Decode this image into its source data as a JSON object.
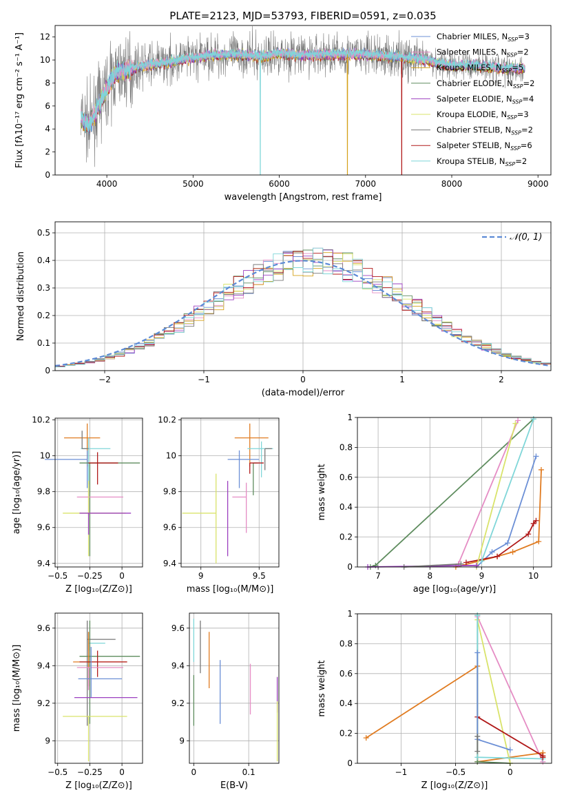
{
  "colors": {
    "Chabrier MILES": "#6b8fd6",
    "Salpeter MILES": "#e58cc4",
    "Kroupa MILES": "#d4a017",
    "Chabrier ELODIE": "#5e8c5e",
    "Salpeter ELODIE": "#9b3fbf",
    "Kroupa ELODIE": "#d9e36a",
    "Chabrier STELIB": "#777777",
    "Salpeter STELIB": "#b01818",
    "Kroupa STELIB": "#7fd6d8",
    "orange": "#e07b20",
    "normal": "#5b8ad6"
  },
  "chart_data": [
    {
      "type": "line",
      "title": "PLATE=2123, MJD=53793, FIBERID=0591, z=0.035",
      "xlabel": "wavelength [Angstrom, rest frame]",
      "ylabel": "Flux [fλ10⁻¹⁷ erg cm⁻² s⁻¹ A⁻¹]",
      "xlim": [
        3400,
        9150
      ],
      "ylim": [
        0,
        13
      ],
      "xticks": [
        4000,
        5000,
        6000,
        7000,
        8000,
        9000
      ],
      "yticks": [
        0,
        2,
        4,
        6,
        8,
        10,
        12
      ],
      "grid": false,
      "legend_position": "top-right",
      "legend": [
        {
          "series": "Chabrier MILES",
          "label": "Chabrier MILES, N",
          "sub": "SSP",
          "tail": "=3"
        },
        {
          "series": "Salpeter MILES",
          "label": "Salpeter MILES, N",
          "sub": "SSP",
          "tail": "=2"
        },
        {
          "series": "Kroupa MILES",
          "label": "Kroupa MILES, N",
          "sub": "SSP",
          "tail": "=5"
        },
        {
          "series": "Chabrier ELODIE",
          "label": "Chabrier ELODIE, N",
          "sub": "SSP",
          "tail": "=2"
        },
        {
          "series": "Salpeter ELODIE",
          "label": "Salpeter ELODIE, N",
          "sub": "SSP",
          "tail": "=4"
        },
        {
          "series": "Kroupa ELODIE",
          "label": "Kroupa ELODIE, N",
          "sub": "SSP",
          "tail": "=3"
        },
        {
          "series": "Chabrier STELIB",
          "label": "Chabrier STELIB, N",
          "sub": "SSP",
          "tail": "=2"
        },
        {
          "series": "Salpeter STELIB",
          "label": "Salpeter STELIB, N",
          "sub": "SSP",
          "tail": "=6"
        },
        {
          "series": "Kroupa STELIB",
          "label": "Kroupa STELIB, N",
          "sub": "SSP",
          "tail": "=2"
        }
      ],
      "model_continuum": {
        "x": [
          3700,
          3800,
          3900,
          4000,
          4100,
          4300,
          4500,
          4700,
          5000,
          5200,
          5500,
          5800,
          6000,
          6300,
          6600,
          7000,
          7300,
          7700,
          8000,
          8300,
          8600,
          8850
        ],
        "y": [
          5.0,
          4.2,
          6.0,
          7.5,
          8.8,
          9.3,
          9.6,
          9.8,
          10.2,
          10.4,
          10.5,
          10.3,
          10.6,
          10.4,
          10.5,
          10.5,
          10.3,
          10.0,
          9.5,
          9.5,
          9.3,
          9.3
        ]
      },
      "data_noise_amplitude": 1.3,
      "absorption_drops": [
        {
          "series": "Kroupa STELIB",
          "x": 5780,
          "to": 0
        },
        {
          "series": "Kroupa MILES",
          "x": 6790,
          "to": 0
        },
        {
          "series": "Salpeter STELIB",
          "x": 7420,
          "to": 0
        }
      ]
    },
    {
      "type": "histogram",
      "xlabel": "(data-model)/error",
      "ylabel": "Normed distribution",
      "xlim": [
        -2.5,
        2.5
      ],
      "ylim": [
        0,
        0.54
      ],
      "xticks": [
        -2,
        -1,
        0,
        1,
        2
      ],
      "yticks": [
        0.0,
        0.1,
        0.2,
        0.3,
        0.4,
        0.5
      ],
      "grid": true,
      "legend_position": "top-right",
      "legend_label": "𝒩(0, 1)",
      "normal_curve": {
        "mean": 0,
        "sd": 1
      },
      "bin_width": 0.1,
      "series": [
        "Chabrier MILES",
        "Salpeter MILES",
        "Kroupa MILES",
        "Chabrier ELODIE",
        "Salpeter ELODIE",
        "Kroupa ELODIE",
        "Chabrier STELIB",
        "Salpeter STELIB",
        "Kroupa STELIB"
      ]
    },
    {
      "type": "errorbar",
      "xlabel": "Z [log₁₀(Z/Z⊙)]",
      "ylabel": "age  [log₁₀(age/yr)]",
      "xlim": [
        -0.52,
        0.16
      ],
      "ylim": [
        9.38,
        10.21
      ],
      "xticks": [
        -0.5,
        -0.25,
        0.0
      ],
      "yticks": [
        9.4,
        9.6,
        9.8,
        10.0,
        10.2
      ],
      "points": [
        {
          "series": "orange",
          "x": -0.27,
          "xerr": [
            0.18,
            0.1
          ],
          "y": 10.1,
          "yerr": [
            0.16,
            0.08
          ]
        },
        {
          "series": "Kroupa STELIB",
          "x": -0.26,
          "xerr": [
            0.06,
            0.17
          ],
          "y": 10.04,
          "yerr": [
            0.2,
            0.06
          ]
        },
        {
          "series": "Chabrier MILES",
          "x": -0.27,
          "xerr": [
            0.33,
            0.0
          ],
          "y": 9.98,
          "yerr": [
            0.16,
            0.05
          ]
        },
        {
          "series": "Chabrier ELODIE",
          "x": -0.25,
          "xerr": [
            0.08,
            0.39
          ],
          "y": 9.96,
          "yerr": [
            0.52,
            0.0
          ]
        },
        {
          "series": "Salpeter STELIB",
          "x": -0.19,
          "xerr": [
            0.07,
            0.16
          ],
          "y": 9.96,
          "yerr": [
            0.12,
            0.06
          ]
        },
        {
          "series": "Salpeter MILES",
          "x": -0.26,
          "xerr": [
            0.09,
            0.27
          ],
          "y": 9.77,
          "yerr": [
            0.1,
            0.04
          ]
        },
        {
          "series": "Kroupa ELODIE",
          "x": -0.26,
          "xerr": [
            0.2,
            0.29
          ],
          "y": 9.68,
          "yerr": [
            0.24,
            0.18
          ]
        },
        {
          "series": "Salpeter ELODIE",
          "x": -0.26,
          "xerr": [
            0.07,
            0.33
          ],
          "y": 9.68,
          "yerr": [
            0.12,
            0.0
          ]
        },
        {
          "series": "Chabrier STELIB",
          "x": -0.31,
          "xerr": [
            0.0,
            0.05
          ],
          "y": 10.04,
          "yerr": [
            0.0,
            0.1
          ]
        }
      ]
    },
    {
      "type": "errorbar",
      "xlabel": "mass [log₁₀(M/M⊙)]",
      "ylabel": "",
      "xlim": [
        8.83,
        9.67
      ],
      "ylim": [
        9.38,
        10.21
      ],
      "xticks": [
        9.0,
        9.5
      ],
      "yticks": [
        9.4,
        9.6,
        9.8,
        10.0,
        10.2
      ],
      "points": [
        {
          "series": "orange",
          "x": 9.42,
          "xerr": [
            0.13,
            0.16
          ],
          "y": 10.1,
          "yerr": [
            0.16,
            0.08
          ]
        },
        {
          "series": "Kroupa STELIB",
          "x": 9.52,
          "xerr": [
            0.12,
            0.1
          ],
          "y": 10.04,
          "yerr": [
            0.16,
            0.04
          ]
        },
        {
          "series": "Chabrier MILES",
          "x": 9.33,
          "xerr": [
            0.1,
            0.17
          ],
          "y": 9.98,
          "yerr": [
            0.16,
            0.05
          ]
        },
        {
          "series": "Chabrier ELODIE",
          "x": 9.45,
          "xerr": [
            0.0,
            0.04
          ],
          "y": 9.96,
          "yerr": [
            0.18,
            0.0
          ]
        },
        {
          "series": "Salpeter STELIB",
          "x": 9.42,
          "xerr": [
            0.0,
            0.12
          ],
          "y": 9.96,
          "yerr": [
            0.06,
            0.0
          ]
        },
        {
          "series": "Salpeter MILES",
          "x": 9.39,
          "xerr": [
            0.12,
            0.0
          ],
          "y": 9.77,
          "yerr": [
            0.2,
            0.08
          ]
        },
        {
          "series": "Kroupa ELODIE",
          "x": 9.13,
          "xerr": [
            0.29,
            0.0
          ],
          "y": 9.68,
          "yerr": [
            0.28,
            0.22
          ]
        },
        {
          "series": "Salpeter ELODIE",
          "x": 9.23,
          "xerr": [
            0.0,
            0.0
          ],
          "y": 9.68,
          "yerr": [
            0.24,
            0.18
          ]
        },
        {
          "series": "Chabrier STELIB",
          "x": 9.55,
          "xerr": [
            0.0,
            0.06
          ],
          "y": 10.04,
          "yerr": [
            0.12,
            0.0
          ]
        }
      ]
    },
    {
      "type": "line",
      "xlabel": "age  [log₁₀(age/yr)]",
      "ylabel": "mass weight",
      "xlim": [
        6.6,
        10.35
      ],
      "ylim": [
        0,
        1
      ],
      "xticks": [
        7,
        8,
        9,
        10
      ],
      "yticks": [
        0.0,
        0.2,
        0.4,
        0.6,
        0.8,
        1.0
      ],
      "grid": true,
      "series": [
        {
          "name": "Chabrier ELODIE",
          "x": [
            6.85,
            6.95,
            10.0
          ],
          "y": [
            0.0,
            0.01,
            0.99
          ]
        },
        {
          "name": "Chabrier MILES",
          "x": [
            8.9,
            9.2,
            9.5,
            10.05
          ],
          "y": [
            0.0,
            0.1,
            0.16,
            0.74
          ]
        },
        {
          "name": "orange",
          "x": [
            8.5,
            9.3,
            9.6,
            10.1,
            10.15
          ],
          "y": [
            0.0,
            0.07,
            0.1,
            0.17,
            0.65
          ]
        },
        {
          "name": "Salpeter STELIB",
          "x": [
            8.7,
            9.3,
            9.9,
            10.0,
            10.05
          ],
          "y": [
            0.03,
            0.07,
            0.22,
            0.29,
            0.31
          ]
        },
        {
          "name": "Salpeter MILES",
          "x": [
            8.55,
            9.7
          ],
          "y": [
            0.02,
            0.98
          ]
        },
        {
          "name": "Kroupa ELODIE",
          "x": [
            8.9,
            9.65
          ],
          "y": [
            0.0,
            0.96
          ]
        },
        {
          "name": "Kroupa STELIB",
          "x": [
            9.0,
            10.0
          ],
          "y": [
            0.04,
            0.99
          ]
        },
        {
          "name": "Salpeter ELODIE",
          "x": [
            6.8,
            8.9
          ],
          "y": [
            0.0,
            0.01
          ]
        },
        {
          "name": "Chabrier STELIB",
          "x": [
            7.5,
            8.6
          ],
          "y": [
            0.0,
            0.02
          ]
        }
      ]
    },
    {
      "type": "errorbar",
      "xlabel": "Z [log₁₀(Z/Z⊙)]",
      "ylabel": "mass [log₁₀(M/M⊙)]",
      "xlim": [
        -0.52,
        0.16
      ],
      "ylim": [
        8.88,
        9.68
      ],
      "xticks": [
        -0.5,
        -0.25,
        0.0
      ],
      "yticks": [
        9.0,
        9.2,
        9.4,
        9.6
      ],
      "points": [
        {
          "series": "Chabrier STELIB",
          "x": -0.27,
          "xerr": [
            0.0,
            0.22
          ],
          "y": 9.54,
          "yerr": [
            0.46,
            0.1
          ]
        },
        {
          "series": "Kroupa STELIB",
          "x": -0.26,
          "xerr": [
            0.0,
            0.13
          ],
          "y": 9.52,
          "yerr": [
            0.04,
            0.06
          ]
        },
        {
          "series": "Chabrier ELODIE",
          "x": -0.25,
          "xerr": [
            0.08,
            0.39
          ],
          "y": 9.45,
          "yerr": [
            0.36,
            0.19
          ]
        },
        {
          "series": "orange",
          "x": -0.26,
          "xerr": [
            0.12,
            0.3
          ],
          "y": 9.42,
          "yerr": [
            0.13,
            0.16
          ]
        },
        {
          "series": "Salpeter STELIB",
          "x": -0.19,
          "xerr": [
            0.14,
            0.23
          ],
          "y": 9.42,
          "yerr": [
            0.08,
            0.06
          ]
        },
        {
          "series": "Salpeter MILES",
          "x": -0.26,
          "xerr": [
            0.09,
            0.27
          ],
          "y": 9.39,
          "yerr": [
            0.12,
            0.0
          ]
        },
        {
          "series": "Chabrier MILES",
          "x": -0.24,
          "xerr": [
            0.1,
            0.24
          ],
          "y": 9.33,
          "yerr": [
            0.1,
            0.17
          ]
        },
        {
          "series": "Salpeter ELODIE",
          "x": -0.25,
          "xerr": [
            0.12,
            0.37
          ],
          "y": 9.23,
          "yerr": [
            0.0,
            0.0
          ]
        },
        {
          "series": "Kroupa ELODIE",
          "x": -0.26,
          "xerr": [
            0.2,
            0.3
          ],
          "y": 9.13,
          "yerr": [
            0.24,
            0.0
          ]
        }
      ]
    },
    {
      "type": "errorbar",
      "xlabel": "E(B-V)",
      "ylabel": "",
      "xlim": [
        -0.008,
        0.155
      ],
      "ylim": [
        8.88,
        9.68
      ],
      "xticks": [
        0.0,
        0.1
      ],
      "yticks": [
        9.0,
        9.2,
        9.4,
        9.6
      ],
      "points": [
        {
          "series": "Kroupa STELIB",
          "x": 0.0,
          "y": 9.5,
          "yerr": [
            0.08,
            0.15
          ]
        },
        {
          "series": "Chabrier ELODIE",
          "x": 0.0,
          "y": 9.2,
          "yerr": [
            0.12,
            0.15
          ]
        },
        {
          "series": "Chabrier STELIB",
          "x": 0.012,
          "y": 9.5,
          "yerr": [
            0.14,
            0.14
          ]
        },
        {
          "series": "orange",
          "x": 0.028,
          "y": 9.43,
          "yerr": [
            0.15,
            0.15
          ]
        },
        {
          "series": "Chabrier MILES",
          "x": 0.048,
          "y": 9.26,
          "yerr": [
            0.17,
            0.17
          ]
        },
        {
          "series": "Salpeter MILES",
          "x": 0.103,
          "y": 9.27,
          "yerr": [
            0.13,
            0.14
          ]
        },
        {
          "series": "Salpeter ELODIE",
          "x": 0.152,
          "y": 9.24,
          "yerr": [
            0.09,
            0.1
          ]
        },
        {
          "series": "Kroupa ELODIE",
          "x": 0.152,
          "y": 9.05,
          "yerr": [
            0.16,
            0.16
          ]
        }
      ]
    },
    {
      "type": "line",
      "xlabel": "Z [log₁₀(Z/Z⊙)]",
      "ylabel": "mass weight",
      "xlim": [
        -1.4,
        0.38
      ],
      "ylim": [
        0,
        1
      ],
      "xticks": [
        -1.0,
        -0.5,
        0.0
      ],
      "yticks": [
        0.0,
        0.2,
        0.4,
        0.6,
        0.8,
        1.0
      ],
      "grid": true,
      "series": [
        {
          "name": "orange",
          "x": [
            -1.32,
            -0.3,
            -0.3,
            0.3,
            0.3
          ],
          "y": [
            0.17,
            0.65,
            0.01,
            0.07,
            0.04
          ]
        },
        {
          "name": "Salpeter MILES",
          "x": [
            -0.3,
            0.3
          ],
          "y": [
            0.98,
            0.01
          ]
        },
        {
          "name": "Chabrier ELODIE",
          "x": [
            -0.3,
            -0.3,
            0.0
          ],
          "y": [
            0.99,
            0.01,
            0.0
          ]
        },
        {
          "name": "Kroupa ELODIE",
          "x": [
            -0.3,
            0.0
          ],
          "y": [
            0.96,
            0.0
          ]
        },
        {
          "name": "Kroupa STELIB",
          "x": [
            -0.3,
            -0.3,
            0.3
          ],
          "y": [
            0.99,
            0.04,
            0.03
          ]
        },
        {
          "name": "Salpeter STELIB",
          "x": [
            -0.3,
            0.3,
            0.3
          ],
          "y": [
            0.31,
            0.05,
            0.04
          ]
        },
        {
          "name": "Chabrier MILES",
          "x": [
            -0.3,
            -0.3,
            0.0
          ],
          "y": [
            0.74,
            0.16,
            0.09
          ]
        },
        {
          "name": "Chabrier STELIB",
          "x": [
            -0.3,
            -0.3
          ],
          "y": [
            0.18,
            0.08
          ]
        }
      ]
    }
  ]
}
